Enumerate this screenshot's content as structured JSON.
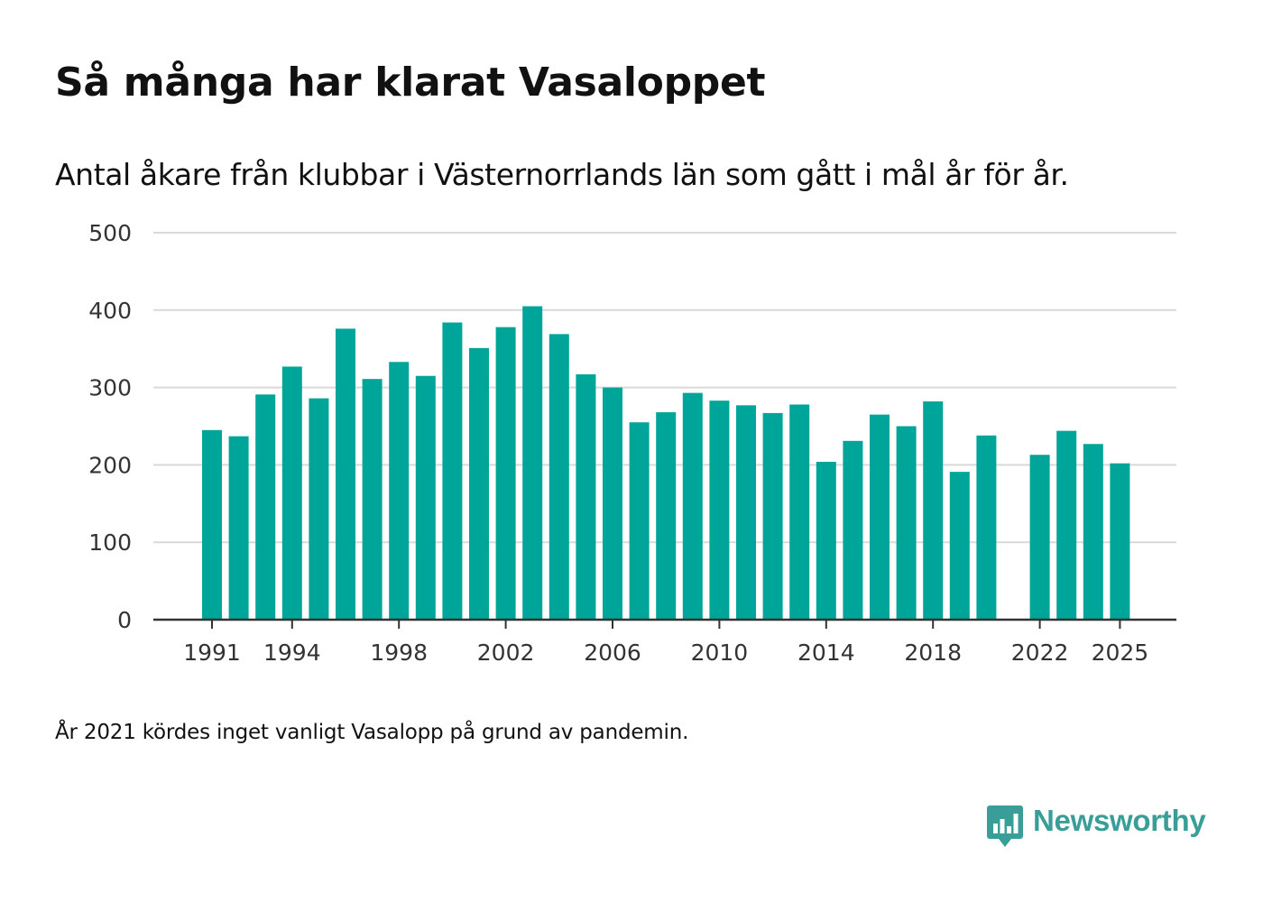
{
  "title": "Så många har klarat Vasaloppet",
  "subtitle": "Antal åkare från klubbar i Västernorrlands län som gått i mål år för år.",
  "footnote": "År 2021 kördes inget vanligt Vasalopp på grund av pandemin.",
  "brand": {
    "name": "Newsworthy",
    "icon": "newsworthy-logo-icon",
    "color": "#3a9e98"
  },
  "colors": {
    "bar": "#00a59a",
    "grid": "#d9d9d9",
    "axis": "#333333",
    "text": "#333333"
  },
  "chart_data": {
    "type": "bar",
    "title": "Så många har klarat Vasaloppet",
    "xlabel": "",
    "ylabel": "",
    "ylim": [
      0,
      500
    ],
    "yticks": [
      0,
      100,
      200,
      300,
      400,
      500
    ],
    "xticks": [
      1991,
      1994,
      1998,
      2002,
      2006,
      2010,
      2014,
      2018,
      2022,
      2025
    ],
    "grid": true,
    "categories": [
      1991,
      1992,
      1993,
      1994,
      1995,
      1996,
      1997,
      1998,
      1999,
      2000,
      2001,
      2002,
      2003,
      2004,
      2005,
      2006,
      2007,
      2008,
      2009,
      2010,
      2011,
      2012,
      2013,
      2014,
      2015,
      2016,
      2017,
      2018,
      2019,
      2020,
      2021,
      2022,
      2023,
      2024,
      2025
    ],
    "values": [
      245,
      237,
      291,
      327,
      286,
      376,
      311,
      333,
      315,
      384,
      351,
      378,
      405,
      369,
      317,
      300,
      255,
      268,
      293,
      283,
      277,
      267,
      278,
      204,
      231,
      265,
      250,
      282,
      191,
      238,
      null,
      213,
      244,
      227,
      202
    ]
  }
}
